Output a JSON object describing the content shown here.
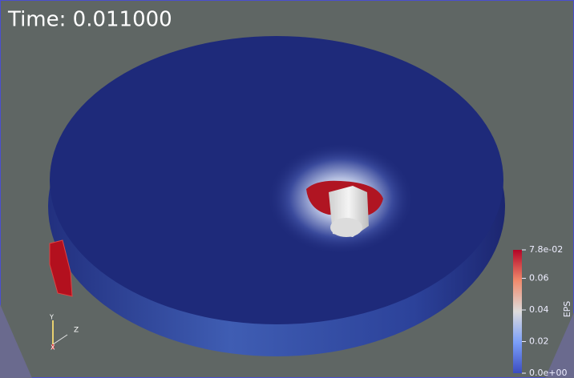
{
  "time_label": "Time: 0.011000",
  "colorbar": {
    "title": "EPS",
    "range": [
      0,
      0.078
    ],
    "ticks": [
      {
        "value": 0.078,
        "label": "7.8e-02"
      },
      0.06,
      0.04,
      0.02,
      {
        "value": 0,
        "label": "0.0e+00"
      }
    ]
  },
  "axes_triad": {
    "y": "Y",
    "z": "Z",
    "x": "X"
  }
}
